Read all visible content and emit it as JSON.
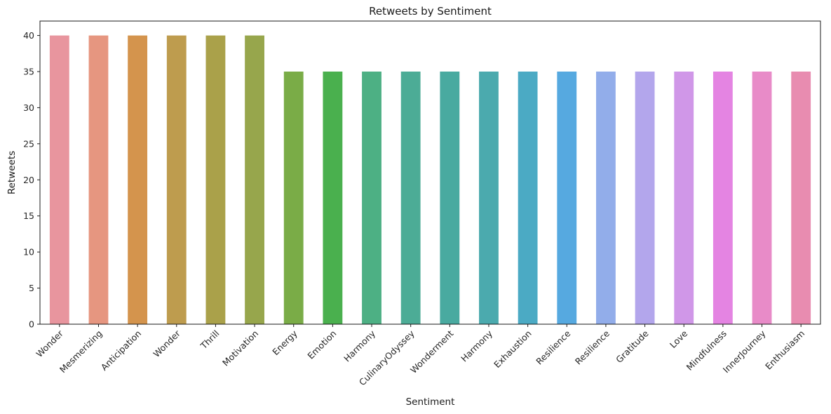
{
  "chart_data": {
    "type": "bar",
    "title": "Retweets by Sentiment",
    "xlabel": "Sentiment",
    "ylabel": "Retweets",
    "ylim": [
      0,
      42
    ],
    "yticks": [
      0,
      5,
      10,
      15,
      20,
      25,
      30,
      35,
      40
    ],
    "grid": false,
    "categories": [
      "Wonder",
      "Mesmerizing",
      "Anticipation",
      "Wonder",
      "Thrill",
      "Motivation",
      "Energy",
      "Emotion",
      "Harmony",
      "CulinaryOdyssey",
      "Wonderment",
      "Harmony",
      "Exhaustion",
      "Resilience",
      "Resilience",
      "Gratitude",
      "Love",
      "Mindfulness",
      "InnerJourney",
      "Enthusiasm"
    ],
    "values": [
      40,
      40,
      40,
      40,
      40,
      40,
      35,
      35,
      35,
      35,
      35,
      35,
      35,
      35,
      35,
      35,
      35,
      35,
      35,
      35
    ],
    "colors": [
      "#e8959e",
      "#e69680",
      "#d4944d",
      "#be9c4e",
      "#aaa14a",
      "#97a64c",
      "#7aac47",
      "#4ab04e",
      "#4db084",
      "#4cac96",
      "#49aaa0",
      "#4baaae",
      "#4baac4",
      "#56a9e0",
      "#92adea",
      "#b3a6ec",
      "#d097e8",
      "#e484e2",
      "#e88bc8",
      "#e88cb0"
    ]
  }
}
